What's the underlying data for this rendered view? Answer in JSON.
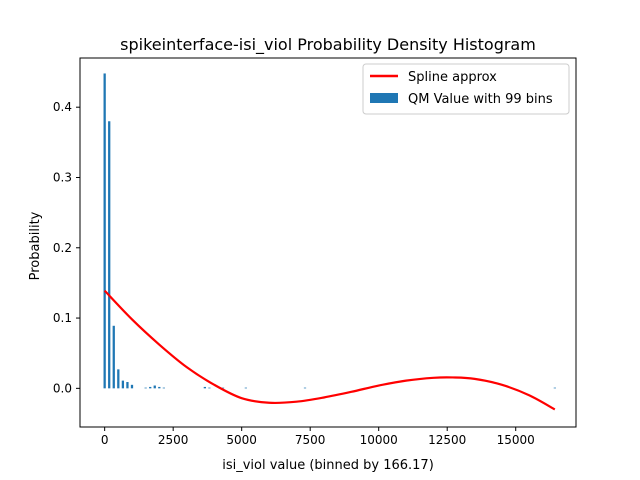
{
  "chart_data": {
    "type": "bar",
    "title": "spikeinterface-isi_viol Probability Density Histogram",
    "xlabel": "isi_viol value (binned by 166.17)",
    "ylabel": "Probability",
    "xlim": [
      -900,
      17200
    ],
    "ylim": [
      -0.055,
      0.47
    ],
    "xticks": [
      0,
      2500,
      5000,
      7500,
      10000,
      12500,
      15000
    ],
    "xtick_labels": [
      "0",
      "2500",
      "5000",
      "7500",
      "10000",
      "12500",
      "15000"
    ],
    "yticks": [
      0.0,
      0.1,
      0.2,
      0.3,
      0.4
    ],
    "ytick_labels": [
      "0.0",
      "0.1",
      "0.2",
      "0.3",
      "0.4"
    ],
    "bin_width": 166.17,
    "bar_color": "#1f77b4",
    "line_color": "#ff0000",
    "legend": {
      "placement": "top-right",
      "entries": [
        {
          "label": "Spline approx",
          "kind": "line"
        },
        {
          "label": "QM Value with 99 bins",
          "kind": "bar"
        }
      ]
    },
    "series": [
      {
        "name": "QM Value with 99 bins",
        "kind": "bar",
        "x": [
          0,
          166,
          332,
          498,
          665,
          831,
          997,
          1496,
          1662,
          1828,
          1994,
          2160,
          3656,
          3822,
          4320,
          5152,
          7311,
          16428
        ],
        "values": [
          0.448,
          0.38,
          0.089,
          0.027,
          0.011,
          0.009,
          0.005,
          0.001,
          0.002,
          0.004,
          0.002,
          0.001,
          0.002,
          0.001,
          0.001,
          0.001,
          0.001,
          0.001
        ]
      },
      {
        "name": "Spline approx",
        "kind": "line",
        "x": [
          0,
          1000,
          2000,
          3000,
          4000,
          5000,
          6000,
          7000,
          8000,
          9000,
          10000,
          11000,
          12000,
          12700,
          13500,
          14500,
          15500,
          16428
        ],
        "values": [
          0.139,
          0.098,
          0.062,
          0.03,
          0.005,
          -0.014,
          -0.0205,
          -0.019,
          -0.013,
          -0.005,
          0.004,
          0.011,
          0.015,
          0.0155,
          0.0135,
          0.005,
          -0.01,
          -0.03
        ]
      }
    ]
  }
}
